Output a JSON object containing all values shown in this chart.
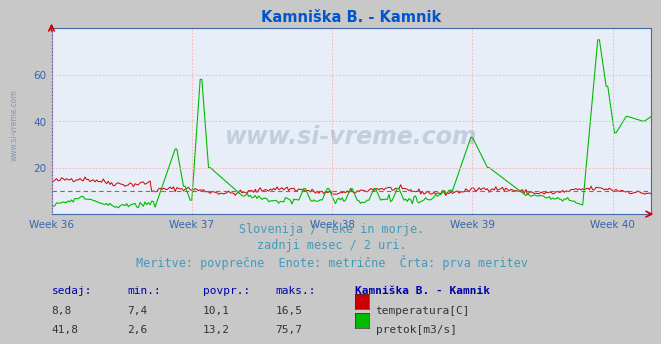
{
  "title": "Kamniška B. - Kamnik",
  "title_color": "#0055cc",
  "bg_color": "#c8c8c8",
  "plot_bg_color": "#e8eef8",
  "grid_color": "#ffaaaa",
  "x_tick_labels": [
    "Week 36",
    "Week 37",
    "Week 38",
    "Week 39",
    "Week 40"
  ],
  "ylim": [
    0,
    80
  ],
  "yticks": [
    20,
    40,
    60
  ],
  "n_points": 360,
  "temp_color": "#cc0000",
  "flow_color": "#00bb00",
  "hline_value": 10.1,
  "hline_color": "#dd4444",
  "subtitle_lines": [
    "Slovenija / reke in morje.",
    "zadnji mesec / 2 uri.",
    "Meritve: povprečne  Enote: metrične  Črta: prva meritev"
  ],
  "subtitle_color": "#4499bb",
  "subtitle_fontsize": 8.5,
  "table_header": [
    "sedaj:",
    "min.:",
    "povpr.:",
    "maks.:",
    "Kamniška B. - Kamnik"
  ],
  "table_header_color": "#0000aa",
  "table_bold_col": 4,
  "table_data": [
    [
      "8,8",
      "7,4",
      "10,1",
      "16,5",
      "temperatura[C]"
    ],
    [
      "41,8",
      "2,6",
      "13,2",
      "75,7",
      "pretok[m3/s]"
    ]
  ],
  "legend_colors": [
    "#cc0000",
    "#00bb00"
  ],
  "watermark": "www.si-vreme.com",
  "watermark_color": "#1a3a6a",
  "watermark_alpha": 0.18,
  "side_label": "www.si-vreme.com",
  "side_label_color": "#6688aa"
}
